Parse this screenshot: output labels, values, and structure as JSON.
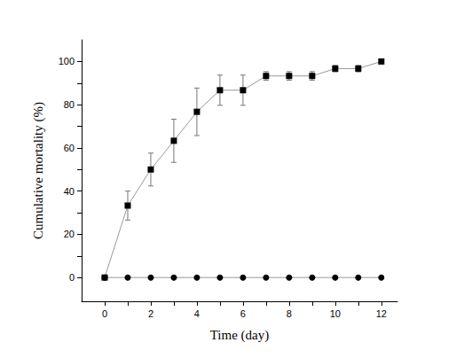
{
  "chart_data": {
    "type": "line",
    "xlabel": "Time (day)",
    "ylabel": "Cumulative mortality (%)",
    "x": [
      0,
      1,
      2,
      3,
      4,
      5,
      6,
      7,
      8,
      9,
      10,
      11,
      12
    ],
    "xlim": [
      -1,
      12.7
    ],
    "xticks": [
      0,
      2,
      4,
      6,
      8,
      10,
      12
    ],
    "ylim": [
      -11,
      110
    ],
    "yticks": [
      0,
      20,
      40,
      60,
      80,
      100
    ],
    "grid": false,
    "series": [
      {
        "color": "#000000",
        "marker": "square",
        "line_style": "solid",
        "values": [
          0,
          33.3,
          50,
          63.3,
          76.7,
          86.7,
          86.7,
          93.3,
          93.3,
          93.3,
          96.7,
          96.7,
          100
        ],
        "error": [
          0,
          6.7,
          7.6,
          10,
          11,
          7,
          7,
          2,
          2,
          2,
          1.5,
          1.5,
          0
        ]
      },
      {
        "color": "#000000",
        "marker": "circle",
        "line_style": "solid",
        "values": [
          0,
          0,
          0,
          0,
          0,
          0,
          0,
          0,
          0,
          0,
          0,
          0,
          0
        ]
      }
    ]
  }
}
